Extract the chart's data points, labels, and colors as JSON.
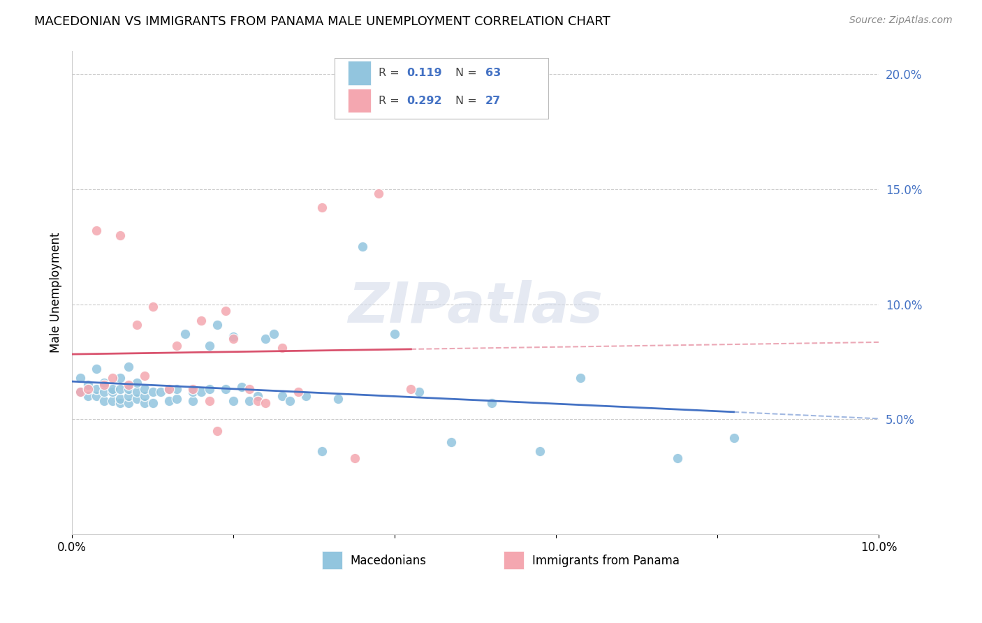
{
  "title": "MACEDONIAN VS IMMIGRANTS FROM PANAMA MALE UNEMPLOYMENT CORRELATION CHART",
  "source": "Source: ZipAtlas.com",
  "ylabel": "Male Unemployment",
  "xlim": [
    0.0,
    0.1
  ],
  "ylim": [
    0.0,
    0.21
  ],
  "x_ticks": [
    0.0,
    0.02,
    0.04,
    0.06,
    0.08,
    0.1
  ],
  "x_tick_labels": [
    "0.0%",
    "",
    "",
    "",
    "",
    "10.0%"
  ],
  "y_ticks_right": [
    0.05,
    0.1,
    0.15,
    0.2
  ],
  "y_tick_labels_right": [
    "5.0%",
    "10.0%",
    "15.0%",
    "20.0%"
  ],
  "macedonian_R": 0.119,
  "macedonian_N": 63,
  "panama_R": 0.292,
  "panama_N": 27,
  "macedonian_color": "#92c5de",
  "panama_color": "#f4a7b0",
  "macedonian_line_color": "#4472c4",
  "panama_line_color": "#d9536e",
  "legend_label_1": "Macedonians",
  "legend_label_2": "Immigrants from Panama",
  "background_color": "#ffffff",
  "watermark": "ZIPatlas",
  "macedonians_x": [
    0.001,
    0.001,
    0.002,
    0.002,
    0.003,
    0.003,
    0.003,
    0.004,
    0.004,
    0.004,
    0.005,
    0.005,
    0.005,
    0.006,
    0.006,
    0.006,
    0.006,
    0.007,
    0.007,
    0.007,
    0.007,
    0.008,
    0.008,
    0.008,
    0.009,
    0.009,
    0.009,
    0.01,
    0.01,
    0.011,
    0.012,
    0.012,
    0.013,
    0.013,
    0.014,
    0.015,
    0.015,
    0.016,
    0.017,
    0.017,
    0.018,
    0.019,
    0.02,
    0.02,
    0.021,
    0.022,
    0.023,
    0.024,
    0.025,
    0.026,
    0.027,
    0.029,
    0.031,
    0.033,
    0.036,
    0.04,
    0.043,
    0.047,
    0.052,
    0.058,
    0.063,
    0.075,
    0.082
  ],
  "macedonians_y": [
    0.062,
    0.068,
    0.06,
    0.065,
    0.06,
    0.063,
    0.072,
    0.058,
    0.062,
    0.066,
    0.058,
    0.062,
    0.063,
    0.057,
    0.059,
    0.063,
    0.068,
    0.057,
    0.06,
    0.063,
    0.073,
    0.059,
    0.062,
    0.066,
    0.057,
    0.06,
    0.063,
    0.057,
    0.062,
    0.062,
    0.058,
    0.063,
    0.059,
    0.063,
    0.087,
    0.058,
    0.062,
    0.062,
    0.063,
    0.082,
    0.091,
    0.063,
    0.058,
    0.086,
    0.064,
    0.058,
    0.06,
    0.085,
    0.087,
    0.06,
    0.058,
    0.06,
    0.036,
    0.059,
    0.125,
    0.087,
    0.062,
    0.04,
    0.057,
    0.036,
    0.068,
    0.033,
    0.042
  ],
  "panama_x": [
    0.001,
    0.002,
    0.003,
    0.004,
    0.005,
    0.006,
    0.007,
    0.008,
    0.009,
    0.01,
    0.012,
    0.013,
    0.015,
    0.016,
    0.017,
    0.018,
    0.019,
    0.02,
    0.022,
    0.023,
    0.024,
    0.026,
    0.028,
    0.031,
    0.035,
    0.038,
    0.042
  ],
  "panama_y": [
    0.062,
    0.063,
    0.132,
    0.065,
    0.068,
    0.13,
    0.065,
    0.091,
    0.069,
    0.099,
    0.063,
    0.082,
    0.063,
    0.093,
    0.058,
    0.045,
    0.097,
    0.085,
    0.063,
    0.058,
    0.057,
    0.081,
    0.062,
    0.142,
    0.033,
    0.148,
    0.063
  ]
}
